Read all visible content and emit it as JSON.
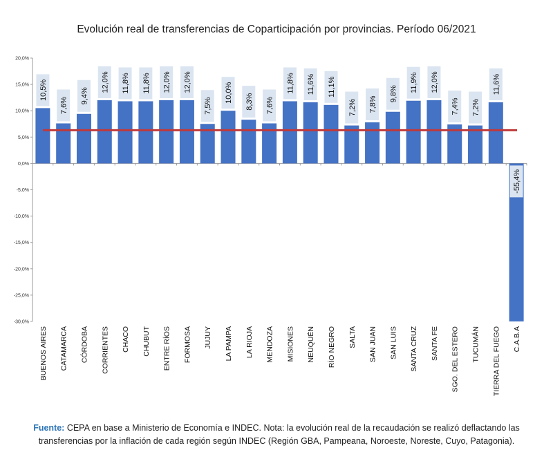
{
  "chart_data": {
    "type": "bar",
    "title": "Evolución real de transferencias de Coparticipación por provincias. Período 06/2021",
    "categories": [
      "BUENOS AIRES",
      "CATAMARCA",
      "CÓRDOBA",
      "CORRIENTES",
      "CHACO",
      "CHUBUT",
      "ENTRE RÍOS",
      "FORMOSA",
      "JUJUY",
      "LA PAMPA",
      "LA RIOJA",
      "MENDOZA",
      "MISIONES",
      "NEUQUÉN",
      "RÍO NEGRO",
      "SALTA",
      "SAN JUAN",
      "SAN LUIS",
      "SANTA CRUZ",
      "SANTA FE",
      "SGO. DEL ESTERO",
      "TUCUMÁN",
      "TIERRA DEL FUEGO",
      "C.A.B.A"
    ],
    "values": [
      10.5,
      7.6,
      9.4,
      12.0,
      11.8,
      11.8,
      12.0,
      12.0,
      7.5,
      10.0,
      8.3,
      7.6,
      11.8,
      11.6,
      11.1,
      7.2,
      7.8,
      9.8,
      11.9,
      12.0,
      7.4,
      7.2,
      11.6,
      -55.4
    ],
    "data_labels": [
      "10,5%",
      "7,6%",
      "9,4%",
      "12,0%",
      "11,8%",
      "11,8%",
      "12,0%",
      "12,0%",
      "7,5%",
      "10,0%",
      "8,3%",
      "7,6%",
      "11,8%",
      "11,6%",
      "11,1%",
      "7,2%",
      "7,8%",
      "9,8%",
      "11,9%",
      "12,0%",
      "7,4%",
      "7,2%",
      "11,6%",
      "-55,4%"
    ],
    "yticks": [
      20,
      15,
      10,
      5,
      0,
      -5,
      -10,
      -15,
      -20,
      -25,
      -30
    ],
    "ytick_labels": [
      "20,0%",
      "15,0%",
      "10,0%",
      "5,0%",
      "0,0%",
      "-5,0%",
      "-10,0%",
      "-15,0%",
      "-20,0%",
      "-25,0%",
      "-30,0%"
    ],
    "ylim": [
      -30,
      20
    ],
    "reference_line_value": 6.3,
    "xlabel": "",
    "ylabel": "",
    "colors": {
      "bar": "#4472c4",
      "reference_line": "#c0393b",
      "label_bg": "#dbe5f1"
    }
  },
  "footnote": {
    "source_label": "Fuente:",
    "text": "CEPA en base a Ministerio de Economía e INDEC. Nota: la evolución real de la recaudación se realizó deflactando las transferencias por la inflación de cada región según INDEC (Región GBA, Pampeana, Noroeste, Noreste, Cuyo, Patagonia)."
  }
}
